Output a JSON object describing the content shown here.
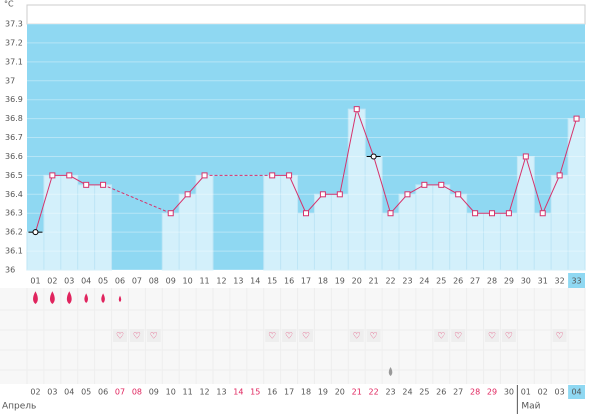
{
  "chart_data": {
    "type": "line",
    "unit": "°C",
    "categories": [
      "01",
      "02",
      "03",
      "04",
      "05",
      "06",
      "07",
      "08",
      "09",
      "10",
      "11",
      "12",
      "13",
      "14",
      "15",
      "16",
      "17",
      "18",
      "19",
      "20",
      "21",
      "22",
      "23",
      "24",
      "25",
      "26",
      "27",
      "28",
      "29",
      "30",
      "31",
      "32",
      "33"
    ],
    "series": [
      {
        "color": "#d6336c",
        "values": [
          36.2,
          36.5,
          36.5,
          36.45,
          36.45,
          null,
          null,
          null,
          36.3,
          36.4,
          36.5,
          null,
          null,
          null,
          36.5,
          36.5,
          36.3,
          36.4,
          36.4,
          36.85,
          36.6,
          36.3,
          36.4,
          36.45,
          36.45,
          36.4,
          36.3,
          36.3,
          36.3,
          36.6,
          36.3,
          36.5,
          36.8
        ],
        "marker_colors": [
          "#000",
          "#d6336c",
          "#d6336c",
          "#d6336c",
          "#d6336c",
          null,
          null,
          null,
          "#d6336c",
          "#d6336c",
          "#d6336c",
          null,
          null,
          null,
          "#d6336c",
          "#d6336c",
          "#d6336c",
          "#d6336c",
          "#d6336c",
          "#d6336c",
          "#000",
          "#d6336c",
          "#d6336c",
          "#d6336c",
          "#d6336c",
          "#d6336c",
          "#d6336c",
          "#d6336c",
          "#d6336c",
          "#d6336c",
          "#d6336c",
          "#d6336c",
          "#d6336c"
        ]
      }
    ],
    "ylim": [
      36,
      37.3
    ],
    "yticks": [
      36,
      36.1,
      36.2,
      36.3,
      36.4,
      36.5,
      36.6,
      36.7,
      36.8,
      36.9,
      37,
      37.1,
      37.2,
      37.3
    ],
    "flow": [
      3,
      3,
      3,
      2,
      2,
      1,
      null,
      null,
      null,
      null,
      null,
      null,
      null,
      null,
      null,
      null,
      null,
      null,
      null,
      null,
      null,
      null,
      null,
      null,
      null,
      null,
      null,
      null,
      null,
      null,
      null,
      null,
      null
    ],
    "hearts": [
      false,
      false,
      false,
      false,
      false,
      true,
      true,
      true,
      false,
      false,
      false,
      false,
      false,
      false,
      true,
      true,
      true,
      false,
      false,
      true,
      true,
      false,
      false,
      false,
      true,
      true,
      false,
      true,
      true,
      false,
      false,
      true,
      false
    ],
    "gray_drop": [
      false,
      false,
      false,
      false,
      false,
      false,
      false,
      false,
      false,
      false,
      false,
      false,
      false,
      false,
      false,
      false,
      false,
      false,
      false,
      false,
      false,
      true,
      false,
      false,
      false,
      false,
      false,
      false,
      false,
      false,
      false,
      false,
      false
    ],
    "dates": [
      "02",
      "03",
      "04",
      "05",
      "06",
      "07",
      "08",
      "09",
      "10",
      "11",
      "12",
      "13",
      "14",
      "15",
      "16",
      "17",
      "18",
      "19",
      "20",
      "21",
      "22",
      "23",
      "24",
      "25",
      "26",
      "27",
      "28",
      "29",
      "30",
      "01",
      "02",
      "03",
      "04"
    ],
    "date_colors": [
      "#555",
      "#555",
      "#555",
      "#555",
      "#555",
      "#e0245e",
      "#e0245e",
      "#555",
      "#555",
      "#555",
      "#555",
      "#555",
      "#e0245e",
      "#e0245e",
      "#555",
      "#555",
      "#555",
      "#555",
      "#555",
      "#e0245e",
      "#e0245e",
      "#555",
      "#555",
      "#555",
      "#555",
      "#555",
      "#e0245e",
      "#e0245e",
      "#555",
      "#555",
      "#555",
      "#555",
      "#555"
    ],
    "months": [
      "Апрель",
      "Май"
    ],
    "grid": true
  }
}
